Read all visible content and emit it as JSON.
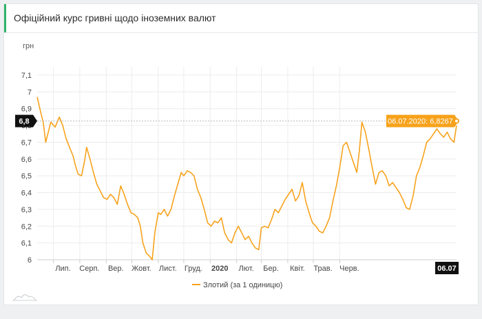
{
  "header": {
    "title": "Офіційний курс гривні щодо іноземних валют"
  },
  "colors": {
    "series": "#f7a21b",
    "tooltip_bg": "#f7a21b",
    "marker_bg": "#111111",
    "accent": "#31b36a"
  },
  "chart_data": {
    "type": "line",
    "ylabel": "грн",
    "ylim": [
      6,
      7.1
    ],
    "yticks": [
      6,
      6.1,
      6.2,
      6.3,
      6.4,
      6.5,
      6.6,
      6.7,
      6.8,
      6.9,
      7,
      7.1
    ],
    "ytick_labels": [
      "6",
      "6,1",
      "6,2",
      "6,3",
      "6,4",
      "6,5",
      "6,6",
      "6,7",
      "6,8",
      "6,9",
      "7",
      "7,1"
    ],
    "xticks": [
      {
        "label": "Лип.",
        "date": "2019-07-01",
        "bold": false
      },
      {
        "label": "Серп.",
        "date": "2019-08-01",
        "bold": false
      },
      {
        "label": "Вер.",
        "date": "2019-09-01",
        "bold": false
      },
      {
        "label": "Жовт.",
        "date": "2019-10-01",
        "bold": false
      },
      {
        "label": "Лист.",
        "date": "2019-11-01",
        "bold": false
      },
      {
        "label": "Груд.",
        "date": "2019-12-01",
        "bold": false
      },
      {
        "label": "2020",
        "date": "2020-01-01",
        "bold": true
      },
      {
        "label": "Лют.",
        "date": "2020-02-01",
        "bold": false
      },
      {
        "label": "Бер.",
        "date": "2020-03-01",
        "bold": false
      },
      {
        "label": "Квіт.",
        "date": "2020-04-01",
        "bold": false
      },
      {
        "label": "Трав.",
        "date": "2020-05-01",
        "bold": false
      },
      {
        "label": "Черв.",
        "date": "2020-06-01",
        "bold": false
      }
    ],
    "grid": true,
    "legend_position": "bottom-center",
    "series": [
      {
        "name": "Злотий (за 1 одиницю)",
        "points": [
          [
            "2019-06-12",
            6.97
          ],
          [
            "2019-06-16",
            6.88
          ],
          [
            "2019-06-19",
            6.82
          ],
          [
            "2019-06-22",
            6.7
          ],
          [
            "2019-06-25",
            6.76
          ],
          [
            "2019-06-28",
            6.82
          ],
          [
            "2019-07-03",
            6.79
          ],
          [
            "2019-07-08",
            6.85
          ],
          [
            "2019-07-12",
            6.8
          ],
          [
            "2019-07-16",
            6.72
          ],
          [
            "2019-07-20",
            6.67
          ],
          [
            "2019-07-24",
            6.62
          ],
          [
            "2019-07-27",
            6.56
          ],
          [
            "2019-07-30",
            6.51
          ],
          [
            "2019-08-03",
            6.5
          ],
          [
            "2019-08-07",
            6.6
          ],
          [
            "2019-08-09",
            6.67
          ],
          [
            "2019-08-13",
            6.6
          ],
          [
            "2019-08-17",
            6.52
          ],
          [
            "2019-08-21",
            6.45
          ],
          [
            "2019-08-25",
            6.41
          ],
          [
            "2019-08-29",
            6.37
          ],
          [
            "2019-09-02",
            6.36
          ],
          [
            "2019-09-06",
            6.39
          ],
          [
            "2019-09-10",
            6.37
          ],
          [
            "2019-09-14",
            6.33
          ],
          [
            "2019-09-18",
            6.44
          ],
          [
            "2019-09-22",
            6.39
          ],
          [
            "2019-09-26",
            6.33
          ],
          [
            "2019-09-30",
            6.28
          ],
          [
            "2019-10-04",
            6.27
          ],
          [
            "2019-10-08",
            6.25
          ],
          [
            "2019-10-11",
            6.2
          ],
          [
            "2019-10-14",
            6.1
          ],
          [
            "2019-10-18",
            6.04
          ],
          [
            "2019-10-22",
            6.02
          ],
          [
            "2019-10-25",
            6.0
          ],
          [
            "2019-10-28",
            6.16
          ],
          [
            "2019-11-01",
            6.28
          ],
          [
            "2019-11-04",
            6.27
          ],
          [
            "2019-11-08",
            6.3
          ],
          [
            "2019-11-12",
            6.26
          ],
          [
            "2019-11-16",
            6.3
          ],
          [
            "2019-11-20",
            6.38
          ],
          [
            "2019-11-24",
            6.45
          ],
          [
            "2019-11-28",
            6.52
          ],
          [
            "2019-12-01",
            6.5
          ],
          [
            "2019-12-05",
            6.53
          ],
          [
            "2019-12-09",
            6.52
          ],
          [
            "2019-12-13",
            6.5
          ],
          [
            "2019-12-17",
            6.42
          ],
          [
            "2019-12-21",
            6.37
          ],
          [
            "2019-12-25",
            6.3
          ],
          [
            "2019-12-29",
            6.22
          ],
          [
            "2020-01-02",
            6.2
          ],
          [
            "2020-01-06",
            6.23
          ],
          [
            "2020-01-10",
            6.22
          ],
          [
            "2020-01-14",
            6.25
          ],
          [
            "2020-01-18",
            6.16
          ],
          [
            "2020-01-22",
            6.12
          ],
          [
            "2020-01-26",
            6.1
          ],
          [
            "2020-01-30",
            6.16
          ],
          [
            "2020-02-03",
            6.2
          ],
          [
            "2020-02-07",
            6.16
          ],
          [
            "2020-02-11",
            6.12
          ],
          [
            "2020-02-15",
            6.14
          ],
          [
            "2020-02-19",
            6.1
          ],
          [
            "2020-02-23",
            6.07
          ],
          [
            "2020-02-27",
            6.06
          ],
          [
            "2020-03-01",
            6.19
          ],
          [
            "2020-03-05",
            6.2
          ],
          [
            "2020-03-09",
            6.19
          ],
          [
            "2020-03-13",
            6.24
          ],
          [
            "2020-03-17",
            6.3
          ],
          [
            "2020-03-21",
            6.28
          ],
          [
            "2020-03-25",
            6.32
          ],
          [
            "2020-03-29",
            6.36
          ],
          [
            "2020-04-02",
            6.39
          ],
          [
            "2020-04-06",
            6.42
          ],
          [
            "2020-04-10",
            6.35
          ],
          [
            "2020-04-14",
            6.38
          ],
          [
            "2020-04-18",
            6.46
          ],
          [
            "2020-04-22",
            6.35
          ],
          [
            "2020-04-26",
            6.28
          ],
          [
            "2020-04-30",
            6.22
          ],
          [
            "2020-05-04",
            6.2
          ],
          [
            "2020-05-08",
            6.17
          ],
          [
            "2020-05-12",
            6.16
          ],
          [
            "2020-05-16",
            6.2
          ],
          [
            "2020-05-20",
            6.25
          ],
          [
            "2020-05-24",
            6.35
          ],
          [
            "2020-05-28",
            6.44
          ],
          [
            "2020-06-01",
            6.55
          ],
          [
            "2020-06-05",
            6.68
          ],
          [
            "2020-06-09",
            6.7
          ],
          [
            "2020-06-13",
            6.64
          ],
          [
            "2020-06-17",
            6.58
          ],
          [
            "2020-06-21",
            6.52
          ],
          [
            "2020-06-24",
            6.65
          ],
          [
            "2020-06-27",
            6.82
          ],
          [
            "2020-07-01",
            6.76
          ],
          [
            "2020-07-05",
            6.66
          ],
          [
            "2020-07-09",
            6.55
          ],
          [
            "2020-07-13",
            6.45
          ],
          [
            "2020-07-17",
            6.52
          ],
          [
            "2020-07-21",
            6.53
          ],
          [
            "2020-07-25",
            6.5
          ],
          [
            "2020-07-29",
            6.44
          ],
          [
            "2020-08-02",
            6.46
          ],
          [
            "2020-08-06",
            6.43
          ],
          [
            "2020-08-10",
            6.4
          ],
          [
            "2020-08-14",
            6.36
          ],
          [
            "2020-08-18",
            6.31
          ],
          [
            "2020-08-22",
            6.3
          ],
          [
            "2020-08-26",
            6.38
          ],
          [
            "2020-08-30",
            6.5
          ],
          [
            "2020-09-03",
            6.55
          ],
          [
            "2020-09-07",
            6.62
          ],
          [
            "2020-09-11",
            6.7
          ],
          [
            "2020-09-15",
            6.72
          ],
          [
            "2020-09-19",
            6.75
          ],
          [
            "2020-09-23",
            6.78
          ],
          [
            "2020-09-27",
            6.75
          ],
          [
            "2020-10-01",
            6.73
          ],
          [
            "2020-10-05",
            6.76
          ],
          [
            "2020-10-09",
            6.72
          ],
          [
            "2020-10-13",
            6.7
          ],
          [
            "2020-10-16",
            6.8
          ]
        ]
      }
    ],
    "crosshair": {
      "value": 6.8267,
      "axis_label": "6,8",
      "tooltip": "06.07.2020: 6,8267",
      "x_marker": "06.07"
    }
  }
}
